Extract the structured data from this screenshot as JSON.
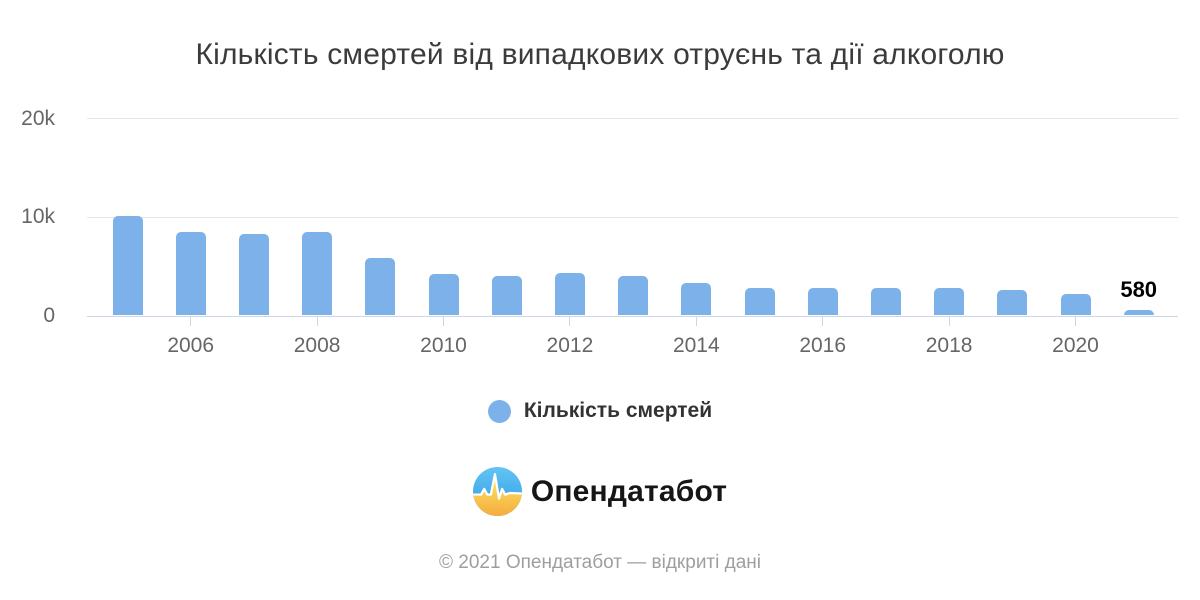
{
  "chart_data": {
    "type": "bar",
    "title": "Кількість смертей від випадкових отруєнь та дії алкоголю",
    "xlabel": "",
    "ylabel": "",
    "ylim": [
      0,
      20000
    ],
    "grid": true,
    "legend_position": "bottom",
    "series_name": "Кількість смертей",
    "categories": [
      2005,
      2006,
      2007,
      2008,
      2009,
      2010,
      2011,
      2012,
      2013,
      2014,
      2015,
      2016,
      2017,
      2018,
      2019,
      2020,
      2021
    ],
    "values": [
      10100,
      8450,
      8250,
      8450,
      5800,
      4200,
      4000,
      4300,
      4050,
      3350,
      2800,
      2800,
      2800,
      2800,
      2600,
      2200,
      580
    ],
    "y_ticks": [
      {
        "label": "0",
        "value": 0
      },
      {
        "label": "10k",
        "value": 10000
      },
      {
        "label": "20k",
        "value": 20000
      }
    ],
    "x_tick_years": [
      2006,
      2008,
      2010,
      2012,
      2014,
      2016,
      2018,
      2020
    ],
    "annotations": [
      {
        "category": 2021,
        "text": "580"
      }
    ]
  },
  "legend": {
    "label": "Кількість смертей"
  },
  "brand": {
    "name": "Опендатабот"
  },
  "footer": {
    "text": "© 2021 Опендатабот — відкриті дані"
  },
  "colors": {
    "bar": "#7cb2e9",
    "gridline": "#e6e6e6",
    "axis_line": "#ccd6eb",
    "tick_label": "#666666",
    "title_text": "#3b3b3b",
    "legend_text": "#333333",
    "annotation_text": "#000000",
    "footer_text": "#9e9e9e",
    "logo_blue_top": "#63c3f5",
    "logo_blue_bottom": "#2f9ce0",
    "logo_yellow_top": "#ffe866",
    "logo_yellow_bottom": "#f4a93c"
  }
}
